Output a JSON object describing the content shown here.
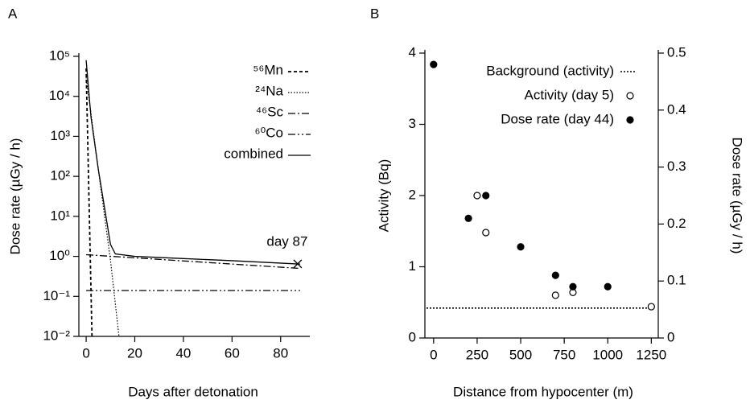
{
  "chart_data": [
    {
      "type": "line",
      "panel_label": "A",
      "log_y": true,
      "x_label": "Days after detonation",
      "y_label": "Dose rate (µGy / h)",
      "xlim": [
        -3,
        92
      ],
      "xticks": [
        0,
        20,
        40,
        60,
        80
      ],
      "ylim": [
        0.01,
        100000
      ],
      "yticks": [
        {
          "value": 0.01,
          "label": "10⁻²"
        },
        {
          "value": 0.1,
          "label": "10⁻¹"
        },
        {
          "value": 1,
          "label": "10⁰"
        },
        {
          "value": 10,
          "label": "10¹"
        },
        {
          "value": 100,
          "label": "10²"
        },
        {
          "value": 1000,
          "label": "10³"
        },
        {
          "value": 10000,
          "label": "10⁴"
        },
        {
          "value": 100000,
          "label": "10⁵"
        }
      ],
      "series": [
        {
          "name": "⁵⁶Mn",
          "color": "#000000",
          "dash": "4,3",
          "width": 1.8,
          "x": [
            0,
            1,
            2,
            2.5
          ],
          "values": [
            50000,
            80,
            0.13,
            0.005
          ]
        },
        {
          "name": "²⁴Na",
          "color": "#000000",
          "dash": "1.5,2",
          "width": 1.2,
          "x": [
            0,
            5,
            10,
            13.5
          ],
          "values": [
            30000,
            150,
            0.8,
            0.01
          ]
        },
        {
          "name": "⁴⁶Sc",
          "color": "#000000",
          "dash": "9,3,2,3",
          "width": 1.3,
          "x": [
            0,
            88
          ],
          "values": [
            1.1,
            0.5
          ]
        },
        {
          "name": "⁶⁰Co",
          "color": "#000000",
          "dash": "9,3,2,3,2,3",
          "width": 1.3,
          "x": [
            0,
            88
          ],
          "values": [
            0.14,
            0.14
          ]
        },
        {
          "name": "combined",
          "color": "#000000",
          "width": 1.3,
          "x": [
            0,
            1,
            2,
            5,
            10,
            12,
            20,
            40,
            60,
            88
          ],
          "values": [
            80000,
            15000,
            3000,
            150,
            2,
            1.15,
            1.0,
            0.88,
            0.78,
            0.64
          ]
        }
      ],
      "annotations": [
        {
          "text": "day 87",
          "x": 87,
          "y": 0.65
        }
      ]
    },
    {
      "type": "scatter",
      "panel_label": "B",
      "x_label": "Distance from hypocenter (m)",
      "y_label": "Activity (Bq)",
      "y2_label": "Dose rate (µGy / h)",
      "xlim": [
        -50,
        1290
      ],
      "xticks": [
        0,
        250,
        500,
        750,
        1000,
        1250
      ],
      "ylim": [
        0,
        4
      ],
      "yticks": [
        0,
        1,
        2,
        3,
        4
      ],
      "y2lim": [
        0,
        0.5
      ],
      "y2ticks": [
        0,
        0.1,
        0.2,
        0.3,
        0.4,
        0.5
      ],
      "series": [
        {
          "name": "Background (activity)",
          "color": "#000000",
          "style": "hline",
          "value": 0.42
        },
        {
          "name": "Activity (day 5)",
          "color": "#000000",
          "style": "hollow",
          "x": [
            250,
            300,
            700,
            800,
            1250
          ],
          "values": [
            2.0,
            1.48,
            0.6,
            0.64,
            0.44
          ]
        },
        {
          "name": "Dose rate (day 44)",
          "color": "#000000",
          "style": "filled",
          "axis": "y2",
          "x": [
            0,
            200,
            300,
            500,
            700,
            800,
            1000
          ],
          "values": [
            0.48,
            0.21,
            0.25,
            0.16,
            0.11,
            0.09,
            0.09
          ]
        }
      ]
    }
  ]
}
